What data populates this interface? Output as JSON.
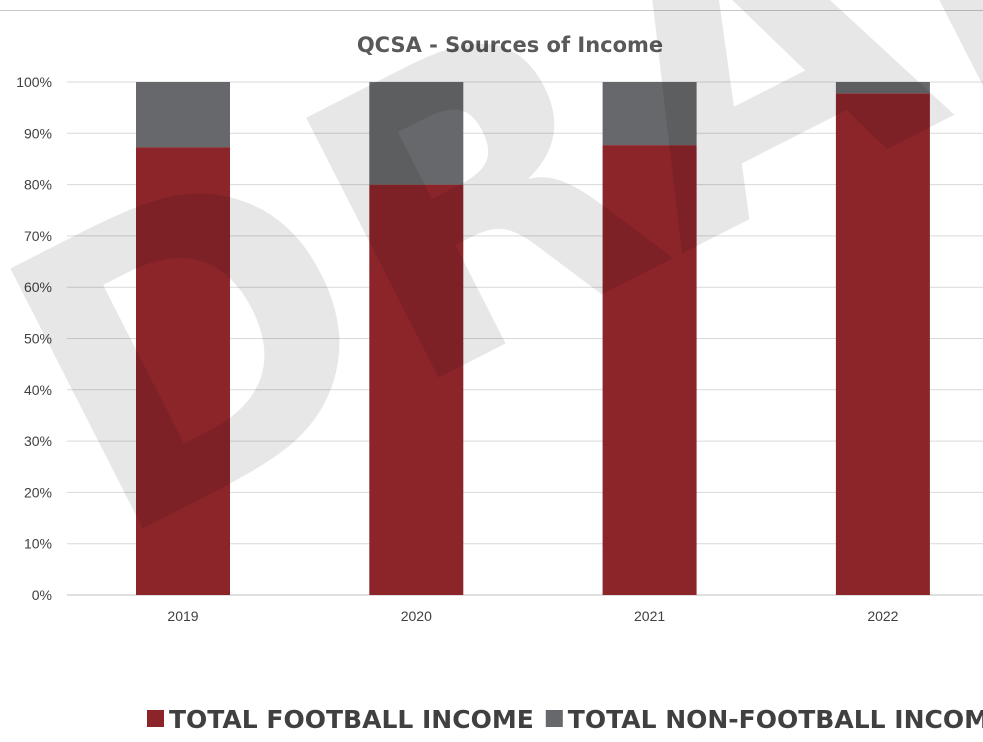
{
  "watermark": "DRAFT",
  "chart_data": {
    "type": "bar",
    "stacked": true,
    "title": "QCSA - Sources of Income",
    "categories": [
      "2019",
      "2020",
      "2021",
      "2022"
    ],
    "series": [
      {
        "name": "TOTAL FOOTBALL INCOME",
        "color": "#8b252a",
        "values": [
          87.3,
          80.0,
          87.7,
          97.8
        ]
      },
      {
        "name": "TOTAL NON-FOOTBALL INCOME",
        "color": "#67686b",
        "values": [
          12.7,
          20.0,
          12.3,
          2.2
        ]
      }
    ],
    "y_ticks": [
      "0%",
      "10%",
      "20%",
      "30%",
      "40%",
      "50%",
      "60%",
      "70%",
      "80%",
      "90%",
      "100%"
    ],
    "ylim": [
      0,
      100
    ],
    "xlabel": "",
    "ylabel": "",
    "grid": true,
    "legend_position": "bottom"
  }
}
